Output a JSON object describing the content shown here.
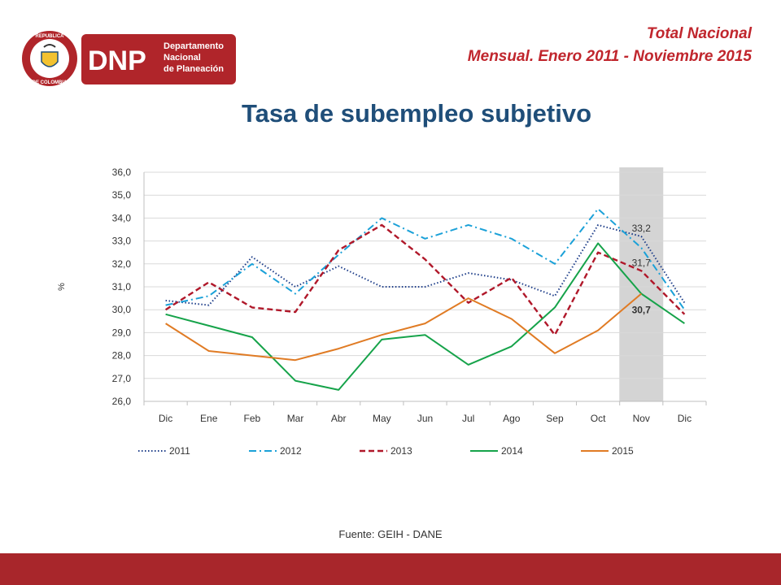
{
  "header": {
    "org_short": "DNP",
    "org_line1": "Departamento",
    "org_line2": "Nacional",
    "org_line3": "de Planeación",
    "seal_top": "REPUBLICA",
    "seal_bottom": "DE COLOMBIA",
    "subtitle_line1": "Total Nacional",
    "subtitle_line2": "Mensual. Enero 2011 - Noviembre 2015"
  },
  "title": "Tasa de subempleo subjetivo",
  "source": "Fuente: GEIH - DANE",
  "colors": {
    "brand_red": "#b0252a",
    "title_blue": "#1f4e79",
    "footer_bar": "#a8262b",
    "highlight_band": "#d4d4d4"
  },
  "chart_data": {
    "type": "line",
    "ylabel": "%",
    "ylim": [
      26,
      36
    ],
    "yticks": [
      "26,0",
      "27,0",
      "28,0",
      "29,0",
      "30,0",
      "31,0",
      "32,0",
      "33,0",
      "34,0",
      "35,0",
      "36,0"
    ],
    "categories": [
      "Dic",
      "Ene",
      "Feb",
      "Mar",
      "Abr",
      "May",
      "Jun",
      "Jul",
      "Ago",
      "Sep",
      "Oct",
      "Nov",
      "Dic"
    ],
    "highlight_category": "Nov",
    "grid": true,
    "legend": "bottom",
    "series": [
      {
        "name": "2011",
        "color": "#1f3f8a",
        "dash": "dotted",
        "values": [
          30.4,
          30.2,
          32.3,
          31.0,
          31.9,
          31.0,
          31.0,
          31.6,
          31.3,
          30.6,
          33.7,
          33.2,
          30.3
        ]
      },
      {
        "name": "2012",
        "color": "#1ba1d8",
        "dash": "dashdot",
        "values": [
          30.2,
          30.6,
          32.0,
          30.7,
          32.4,
          34.0,
          33.1,
          33.7,
          33.1,
          32.0,
          34.4,
          32.7,
          30.0
        ]
      },
      {
        "name": "2013",
        "color": "#b0182a",
        "dash": "dashed",
        "values": [
          30.0,
          31.2,
          30.1,
          29.9,
          32.6,
          33.7,
          32.2,
          30.3,
          31.4,
          28.9,
          32.5,
          31.7,
          29.8
        ]
      },
      {
        "name": "2014",
        "color": "#16a34a",
        "dash": "solid",
        "values": [
          29.8,
          29.3,
          28.8,
          26.9,
          26.5,
          28.7,
          28.9,
          27.6,
          28.4,
          30.1,
          32.9,
          30.7,
          29.4
        ]
      },
      {
        "name": "2015",
        "color": "#e07b24",
        "dash": "solid",
        "values": [
          29.4,
          28.2,
          28.0,
          27.8,
          28.3,
          28.9,
          29.4,
          30.5,
          29.6,
          28.1,
          29.1,
          30.7,
          null
        ]
      }
    ],
    "annotations": [
      {
        "text": "33,2",
        "series": "2011",
        "category": "Nov",
        "bold": false
      },
      {
        "text": "31,7",
        "series": "2013",
        "category": "Nov",
        "bold": false
      },
      {
        "text": "30,7",
        "series": "2015",
        "category": "Nov",
        "bold": true
      }
    ]
  }
}
